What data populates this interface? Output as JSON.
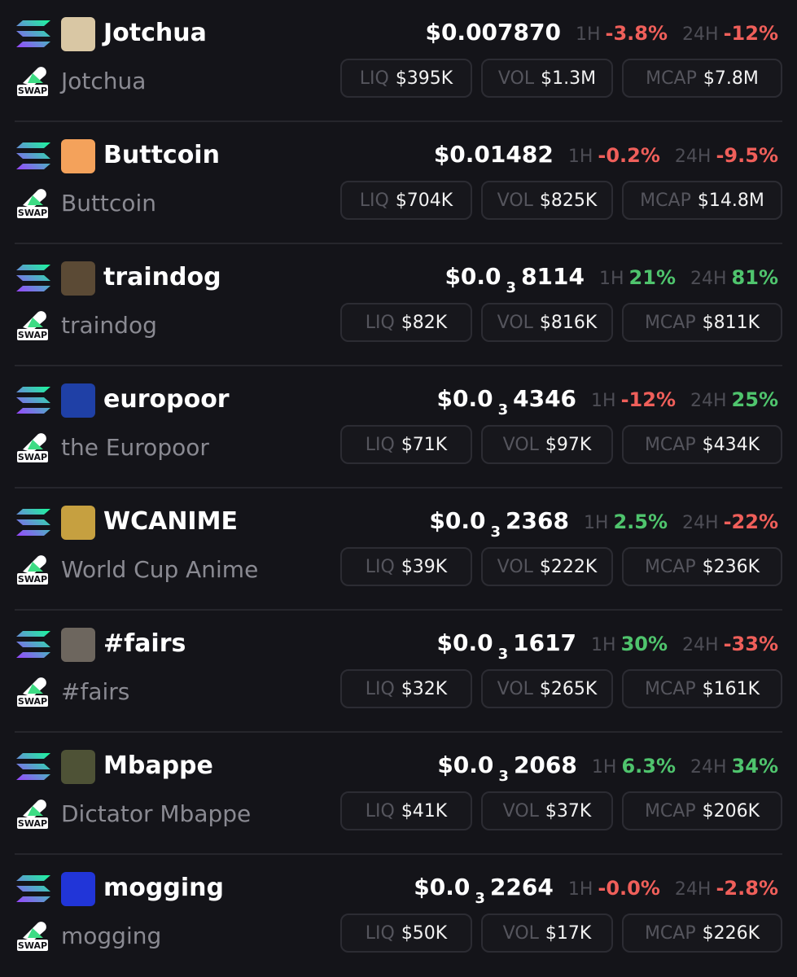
{
  "labels": {
    "h1": "1H",
    "h24": "24H",
    "liq": "LIQ",
    "vol": "VOL",
    "mcap": "MCAP",
    "swap": "SWAP"
  },
  "tokens": [
    {
      "symbol": "Jotchua",
      "name": "Jotchua",
      "price": {
        "main": "$0.007870"
      },
      "h1": "-3.8%",
      "h24": "-12%",
      "liq": "$395K",
      "vol": "$1.3M",
      "mcap": "$7.8M"
    },
    {
      "symbol": "Buttcoin",
      "name": "Buttcoin",
      "price": {
        "main": "$0.01482"
      },
      "h1": "-0.2%",
      "h24": "-9.5%",
      "liq": "$704K",
      "vol": "$825K",
      "mcap": "$14.8M"
    },
    {
      "symbol": "traindog",
      "name": "traindog",
      "price": {
        "main": "$0.0",
        "sub": "3",
        "rest": "8114"
      },
      "h1": "21%",
      "h24": "81%",
      "liq": "$82K",
      "vol": "$816K",
      "mcap": "$811K"
    },
    {
      "symbol": "europoor",
      "name": "the Europoor",
      "price": {
        "main": "$0.0",
        "sub": "3",
        "rest": "4346"
      },
      "h1": "-12%",
      "h24": "25%",
      "liq": "$71K",
      "vol": "$97K",
      "mcap": "$434K"
    },
    {
      "symbol": "WCANIME",
      "name": "World Cup Anime",
      "price": {
        "main": "$0.0",
        "sub": "3",
        "rest": "2368"
      },
      "h1": "2.5%",
      "h24": "-22%",
      "liq": "$39K",
      "vol": "$222K",
      "mcap": "$236K"
    },
    {
      "symbol": "#fairs",
      "name": "#fairs",
      "price": {
        "main": "$0.0",
        "sub": "3",
        "rest": "1617"
      },
      "h1": "30%",
      "h24": "-33%",
      "liq": "$32K",
      "vol": "$265K",
      "mcap": "$161K"
    },
    {
      "symbol": "Mbappe",
      "name": "Dictator Mbappe",
      "price": {
        "main": "$0.0",
        "sub": "3",
        "rest": "2068"
      },
      "h1": "6.3%",
      "h24": "34%",
      "liq": "$41K",
      "vol": "$37K",
      "mcap": "$206K"
    },
    {
      "symbol": "mogging",
      "name": "mogging",
      "price": {
        "main": "$0.0",
        "sub": "3",
        "rest": "2264"
      },
      "h1": "-0.0%",
      "h24": "-2.8%",
      "liq": "$50K",
      "vol": "$17K",
      "mcap": "$226K"
    }
  ]
}
